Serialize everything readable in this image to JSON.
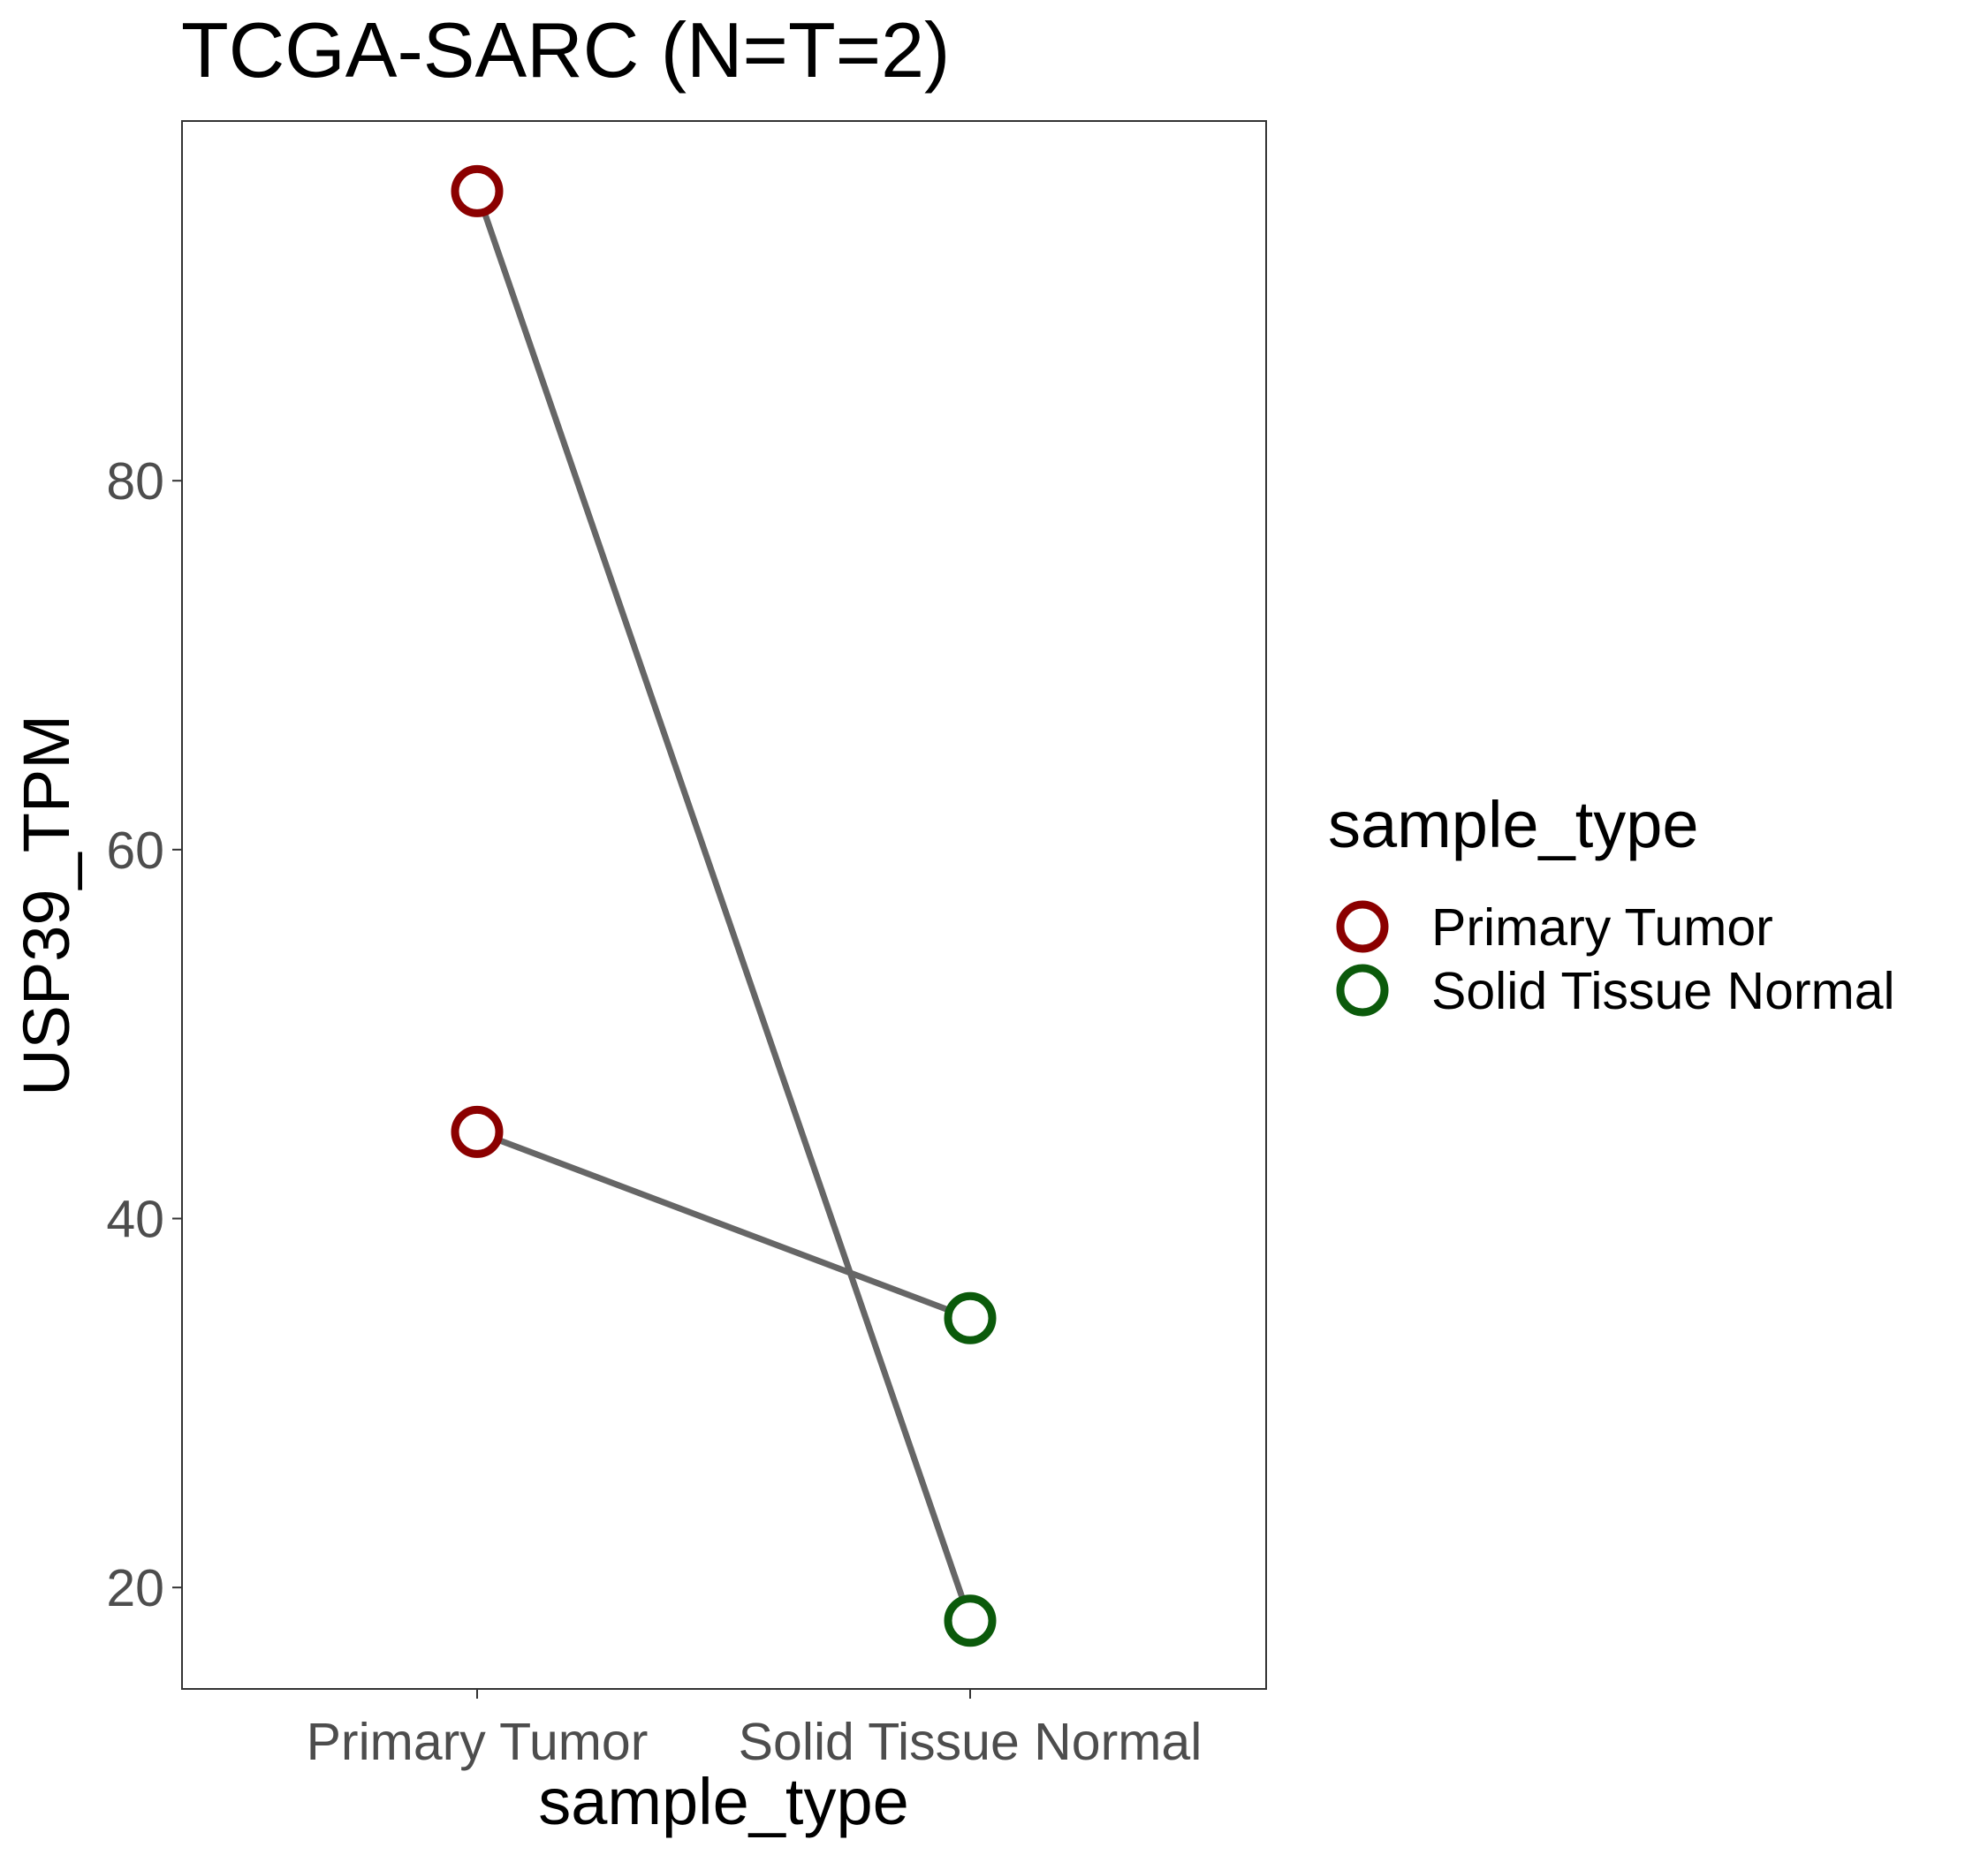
{
  "chart_data": {
    "type": "line",
    "title": "TCGA-SARC  (N=T=2)",
    "xlabel": "sample_type",
    "ylabel": "USP39_TPM",
    "categories": [
      "Primary Tumor",
      "Solid Tissue Normal"
    ],
    "yticks": [
      20,
      40,
      60,
      80
    ],
    "ylim": [
      14.5,
      99.5
    ],
    "grid": false,
    "legend": {
      "title": "sample_type",
      "position": "right",
      "entries": [
        {
          "label": "Primary Tumor",
          "color": "#8b0000"
        },
        {
          "label": "Solid Tissue Normal",
          "color": "#0b5a0b"
        }
      ]
    },
    "pairs": [
      {
        "values": [
          95.7,
          18.2
        ]
      },
      {
        "values": [
          44.7,
          34.6
        ]
      }
    ],
    "line_color": "#666666",
    "point_style": "open-circle"
  }
}
